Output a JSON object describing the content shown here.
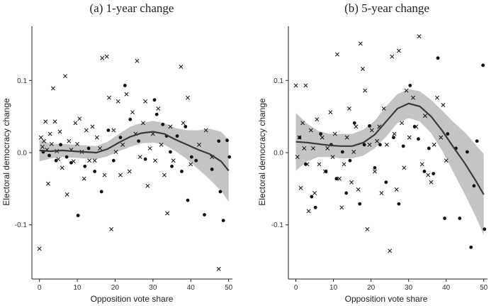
{
  "chart_data": [
    {
      "type": "scatter",
      "title": "(a) 1-year change",
      "xlabel": "Opposition vote share",
      "ylabel": "Electoral democracy change",
      "xlim": [
        -2,
        51
      ],
      "ylim": [
        -0.175,
        0.175
      ],
      "xticks": [
        0,
        10,
        20,
        30,
        40,
        50
      ],
      "yticks": [
        -0.1,
        0.0,
        0.1
      ],
      "ytick_labels": [
        "-0.1",
        "0.0",
        "0.1"
      ],
      "series_cross": [
        [
          0,
          -0.133
        ],
        [
          0.4,
          0.021
        ],
        [
          0.8,
          0.008
        ],
        [
          1.2,
          0.016
        ],
        [
          1.6,
          0.043
        ],
        [
          2,
          0.004
        ],
        [
          2.3,
          -0.043
        ],
        [
          2.8,
          0.026
        ],
        [
          3.2,
          0.012
        ],
        [
          3.6,
          0.089
        ],
        [
          4.1,
          0.043
        ],
        [
          4.6,
          0.002
        ],
        [
          5,
          -0.009
        ],
        [
          5.4,
          0.029
        ],
        [
          6,
          -0.021
        ],
        [
          6.8,
          0.106
        ],
        [
          7.3,
          -0.058
        ],
        [
          7.8,
          0.016
        ],
        [
          8.4,
          0.004
        ],
        [
          9,
          -0.012
        ],
        [
          9.5,
          0.041
        ],
        [
          10,
          0.012
        ],
        [
          10.6,
          0.047
        ],
        [
          11.2,
          0.001
        ],
        [
          11.8,
          -0.036
        ],
        [
          12.4,
          0.031
        ],
        [
          13.2,
          -0.011
        ],
        [
          14,
          0.036
        ],
        [
          14.6,
          -0.011
        ],
        [
          15.2,
          0.021
        ],
        [
          16,
          0.006
        ],
        [
          16.6,
          0.131
        ],
        [
          17.2,
          -0.031
        ],
        [
          17.8,
          0.133
        ],
        [
          18.4,
          0.076
        ],
        [
          19,
          -0.106
        ],
        [
          19.6,
          0.031
        ],
        [
          20.2,
          0.001
        ],
        [
          20.8,
          0.071
        ],
        [
          21.4,
          -0.031
        ],
        [
          22,
          0.011
        ],
        [
          23,
          0.081
        ],
        [
          23.8,
          -0.026
        ],
        [
          24.6,
          0.056
        ],
        [
          25.4,
          0.026
        ],
        [
          25.8,
          0.127
        ],
        [
          26.6,
          -0.006
        ],
        [
          27.4,
          0.041
        ],
        [
          28,
          0.071
        ],
        [
          28.6,
          -0.046
        ],
        [
          29.2,
          0.006
        ],
        [
          30,
          0.026
        ],
        [
          30.6,
          -0.011
        ],
        [
          31.4,
          0.061
        ],
        [
          32.2,
          0.011
        ],
        [
          33,
          -0.031
        ],
        [
          33.8,
          -0.084
        ],
        [
          34.6,
          0.036
        ],
        [
          35.4,
          -0.011
        ],
        [
          37.4,
          0.119
        ],
        [
          38,
          0.041
        ],
        [
          39.2,
          0.076
        ],
        [
          40,
          -0.016
        ],
        [
          42.2,
          0.011
        ],
        [
          44,
          0.031
        ],
        [
          45.6,
          -0.006
        ],
        [
          47.4,
          -0.161
        ]
      ],
      "series_dot": [
        [
          1,
          0.001
        ],
        [
          2.6,
          -0.004
        ],
        [
          4.4,
          -0.011
        ],
        [
          5.6,
          0.011
        ],
        [
          7.2,
          -0.006
        ],
        [
          8.4,
          -0.014
        ],
        [
          10.2,
          -0.087
        ],
        [
          12,
          -0.019
        ],
        [
          13,
          0.006
        ],
        [
          14.6,
          -0.026
        ],
        [
          16.4,
          -0.054
        ],
        [
          18.2,
          0.031
        ],
        [
          19.6,
          -0.011
        ],
        [
          21.4,
          0.021
        ],
        [
          22.6,
          0.093
        ],
        [
          24,
          0.046
        ],
        [
          26.2,
          0.016
        ],
        [
          28,
          -0.009
        ],
        [
          30.4,
          0.073
        ],
        [
          31,
          0.053
        ],
        [
          32.6,
          0.039
        ],
        [
          33.6,
          0.023
        ],
        [
          34.6,
          0.001
        ],
        [
          35,
          -0.019
        ],
        [
          36.4,
          0.023
        ],
        [
          37.6,
          -0.026
        ],
        [
          38.6,
          0.036
        ],
        [
          39.2,
          -0.066
        ],
        [
          40.2,
          -0.006
        ],
        [
          41.4,
          -0.011
        ],
        [
          43.6,
          -0.086
        ],
        [
          45.6,
          -0.023
        ],
        [
          47.4,
          0.016
        ],
        [
          47.8,
          -0.054
        ],
        [
          48.6,
          -0.094
        ],
        [
          49.6,
          0.017
        ],
        [
          50.2,
          -0.006
        ]
      ],
      "fit_x": [
        0,
        3,
        6,
        9,
        12,
        15,
        18,
        21,
        24,
        27,
        30,
        33,
        36,
        39,
        42,
        45,
        48,
        50
      ],
      "fit_y": [
        0.003,
        0.002,
        0.003,
        0.002,
        0.001,
        0.0,
        0.005,
        0.014,
        0.022,
        0.027,
        0.029,
        0.026,
        0.018,
        0.011,
        0.004,
        -0.002,
        -0.012,
        -0.025
      ],
      "band_lo": [
        -0.012,
        -0.008,
        -0.006,
        -0.007,
        -0.008,
        -0.009,
        -0.005,
        0.002,
        0.008,
        0.013,
        0.014,
        0.011,
        0.002,
        -0.009,
        -0.023,
        -0.037,
        -0.053,
        -0.068
      ],
      "band_hi": [
        0.018,
        0.012,
        0.012,
        0.011,
        0.01,
        0.009,
        0.015,
        0.026,
        0.036,
        0.041,
        0.044,
        0.041,
        0.034,
        0.031,
        0.031,
        0.033,
        0.029,
        0.018
      ]
    },
    {
      "type": "scatter",
      "title": "(b) 5-year change",
      "xlabel": "Opposition vote share",
      "ylabel": "Electoral democracy change",
      "xlim": [
        -2,
        51
      ],
      "ylim": [
        -0.175,
        0.175
      ],
      "xticks": [
        0,
        10,
        20,
        30,
        40,
        50
      ],
      "yticks": [
        -0.1,
        0.0,
        0.1
      ],
      "ytick_labels": [
        "-0.1",
        "0.0",
        "0.1"
      ],
      "series_cross": [
        [
          0,
          0.093
        ],
        [
          0.4,
          -0.006
        ],
        [
          0.9,
          0.021
        ],
        [
          1.3,
          -0.049
        ],
        [
          1.8,
          0.041
        ],
        [
          2.2,
          0.006
        ],
        [
          2.6,
          0.093
        ],
        [
          3,
          -0.016
        ],
        [
          3.4,
          -0.081
        ],
        [
          4,
          0.031
        ],
        [
          4.6,
          0.006
        ],
        [
          5,
          -0.056
        ],
        [
          5.6,
          0.046
        ],
        [
          6.2,
          -0.016
        ],
        [
          7,
          0.021
        ],
        [
          7.8,
          -0.026
        ],
        [
          8.4,
          0.006
        ],
        [
          9.2,
          0.056
        ],
        [
          9.8,
          -0.006
        ],
        [
          10.4,
          0.026
        ],
        [
          11,
          0.136
        ],
        [
          11.6,
          -0.036
        ],
        [
          12.2,
          -0.076
        ],
        [
          12.8,
          -0.016
        ],
        [
          13.6,
          0.021
        ],
        [
          14.2,
          0.061
        ],
        [
          14.8,
          -0.041
        ],
        [
          15.4,
          0.001
        ],
        [
          16,
          0.036
        ],
        [
          16.6,
          -0.051
        ],
        [
          17.2,
          0.151
        ],
        [
          17.8,
          0.116
        ],
        [
          18.4,
          0.086
        ],
        [
          19,
          -0.106
        ],
        [
          19.6,
          0.011
        ],
        [
          20.2,
          0.031
        ],
        [
          21,
          -0.026
        ],
        [
          21.6,
          0.016
        ],
        [
          22.2,
          0.036
        ],
        [
          22.8,
          -0.056
        ],
        [
          23.4,
          0.061
        ],
        [
          24.2,
          0.011
        ],
        [
          25,
          -0.136
        ],
        [
          25.6,
          0.133
        ],
        [
          26.2,
          0.026
        ],
        [
          26.8,
          -0.051
        ],
        [
          27.4,
          0.141
        ],
        [
          28.2,
          0.041
        ],
        [
          28.8,
          -0.021
        ],
        [
          29.4,
          0.086
        ],
        [
          30.2,
          0.021
        ],
        [
          31.2,
          0.076
        ],
        [
          32,
          0.036
        ],
        [
          32.8,
          0.161
        ],
        [
          33.6,
          -0.016
        ],
        [
          34.4,
          0.051
        ],
        [
          35.2,
          -0.031
        ],
        [
          36,
          -0.041
        ],
        [
          36.8,
          0.011
        ],
        [
          37.6,
          0.076
        ],
        [
          38.6,
          0.021
        ],
        [
          39.2,
          0.066
        ],
        [
          40,
          -0.011
        ]
      ],
      "series_dot": [
        [
          1,
          0.021
        ],
        [
          2.6,
          -0.016
        ],
        [
          4.2,
          -0.061
        ],
        [
          5.2,
          -0.076
        ],
        [
          6.6,
          0.026
        ],
        [
          8,
          -0.026
        ],
        [
          9.4,
          0.011
        ],
        [
          10.8,
          -0.036
        ],
        [
          12.4,
          0.001
        ],
        [
          13.4,
          -0.056
        ],
        [
          14.4,
          -0.011
        ],
        [
          15.6,
          0.041
        ],
        [
          17,
          -0.071
        ],
        [
          18.2,
          0.011
        ],
        [
          19.6,
          0.037
        ],
        [
          21,
          -0.021
        ],
        [
          22.4,
          0.011
        ],
        [
          24,
          -0.041
        ],
        [
          26,
          0.021
        ],
        [
          27.4,
          -0.071
        ],
        [
          28.6,
          0.009
        ],
        [
          30.4,
          0.093
        ],
        [
          31.6,
          0.036
        ],
        [
          32.6,
          0.019
        ],
        [
          34.2,
          -0.026
        ],
        [
          35.4,
          0.006
        ],
        [
          36.6,
          -0.029
        ],
        [
          37.8,
          0.131
        ],
        [
          39.6,
          -0.091
        ],
        [
          40.4,
          0.026
        ],
        [
          42.6,
          0.006
        ],
        [
          43.6,
          -0.091
        ],
        [
          45.6,
          0.001
        ],
        [
          46.6,
          -0.131
        ],
        [
          47.4,
          -0.046
        ],
        [
          48.2,
          0.016
        ],
        [
          49.8,
          0.121
        ],
        [
          50.2,
          -0.106
        ]
      ],
      "fit_x": [
        0,
        3,
        6,
        9,
        12,
        15,
        18,
        21,
        24,
        27,
        30,
        33,
        36,
        39,
        42,
        45,
        48,
        50
      ],
      "fit_y": [
        0.015,
        0.014,
        0.012,
        0.01,
        0.009,
        0.009,
        0.014,
        0.025,
        0.043,
        0.061,
        0.068,
        0.064,
        0.05,
        0.03,
        0.007,
        -0.015,
        -0.04,
        -0.058
      ],
      "band_lo": [
        -0.025,
        -0.012,
        -0.006,
        -0.006,
        -0.008,
        -0.008,
        -0.004,
        0.006,
        0.022,
        0.041,
        0.048,
        0.043,
        0.027,
        0.002,
        -0.028,
        -0.058,
        -0.09,
        -0.114
      ],
      "band_hi": [
        0.055,
        0.04,
        0.03,
        0.026,
        0.026,
        0.026,
        0.032,
        0.044,
        0.064,
        0.081,
        0.088,
        0.085,
        0.073,
        0.058,
        0.042,
        0.028,
        0.01,
        -0.002
      ]
    }
  ]
}
